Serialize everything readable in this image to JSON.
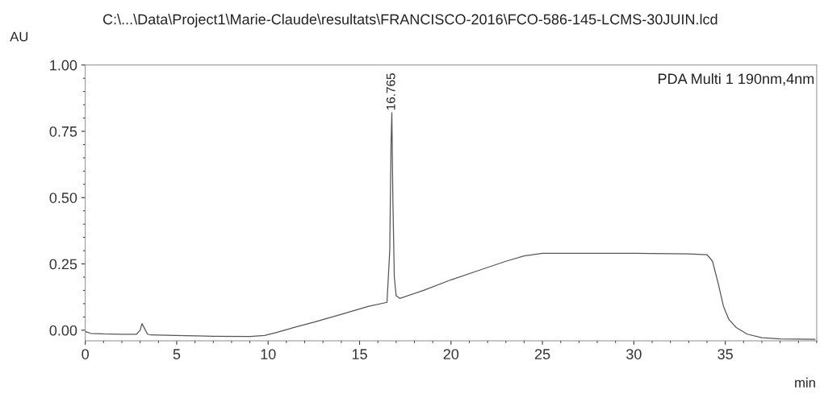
{
  "chart_data": {
    "type": "line",
    "title": "C:\\...\\Data\\Project1\\Marie-Claude\\resultats\\FRANCISCO-2016\\FCO-586-145-LCMS-30JUIN.lcd",
    "xlabel": "min",
    "ylabel": "AU",
    "xlim": [
      0,
      40
    ],
    "xticks": [
      0,
      5,
      10,
      15,
      20,
      25,
      30,
      35
    ],
    "ylim": [
      -0.04,
      1.0
    ],
    "yticks": [
      {
        "value": 0,
        "label": "0.00"
      },
      {
        "value": 0.25,
        "label": "0.25"
      },
      {
        "value": 0.5,
        "label": "0.50"
      },
      {
        "value": 0.75,
        "label": "0.75"
      },
      {
        "value": 1.0,
        "label": "1.00"
      }
    ],
    "grid": false,
    "marker": "none",
    "line_style": "solid",
    "annotations": [
      "PDA Multi 1 190nm,4nm",
      {
        "text": "16.765",
        "x": 16.765,
        "y": 0.82
      }
    ],
    "series": [
      {
        "color": "#555555",
        "x": [
          0,
          0.3,
          1,
          2,
          2.8,
          3.0,
          3.1,
          3.2,
          3.4,
          3.6,
          5,
          7,
          9,
          9.8,
          10.5,
          11.5,
          12.5,
          14,
          15.5,
          16.5,
          16.65,
          16.72,
          16.765,
          16.82,
          16.9,
          17.0,
          17.2,
          18.5,
          20,
          21.5,
          23,
          24,
          25,
          27,
          30,
          33,
          34.0,
          34.3,
          34.6,
          34.9,
          35.2,
          35.6,
          36.2,
          37,
          38,
          39.9
        ],
        "values": [
          -0.005,
          -0.012,
          -0.014,
          -0.015,
          -0.015,
          0.0,
          0.025,
          0.012,
          -0.015,
          -0.018,
          -0.02,
          -0.023,
          -0.024,
          -0.02,
          -0.008,
          0.012,
          0.03,
          0.06,
          0.09,
          0.105,
          0.3,
          0.7,
          0.82,
          0.5,
          0.2,
          0.13,
          0.12,
          0.15,
          0.19,
          0.225,
          0.26,
          0.28,
          0.29,
          0.29,
          0.29,
          0.288,
          0.285,
          0.26,
          0.18,
          0.09,
          0.04,
          0.01,
          -0.015,
          -0.028,
          -0.033,
          -0.034
        ]
      }
    ]
  }
}
